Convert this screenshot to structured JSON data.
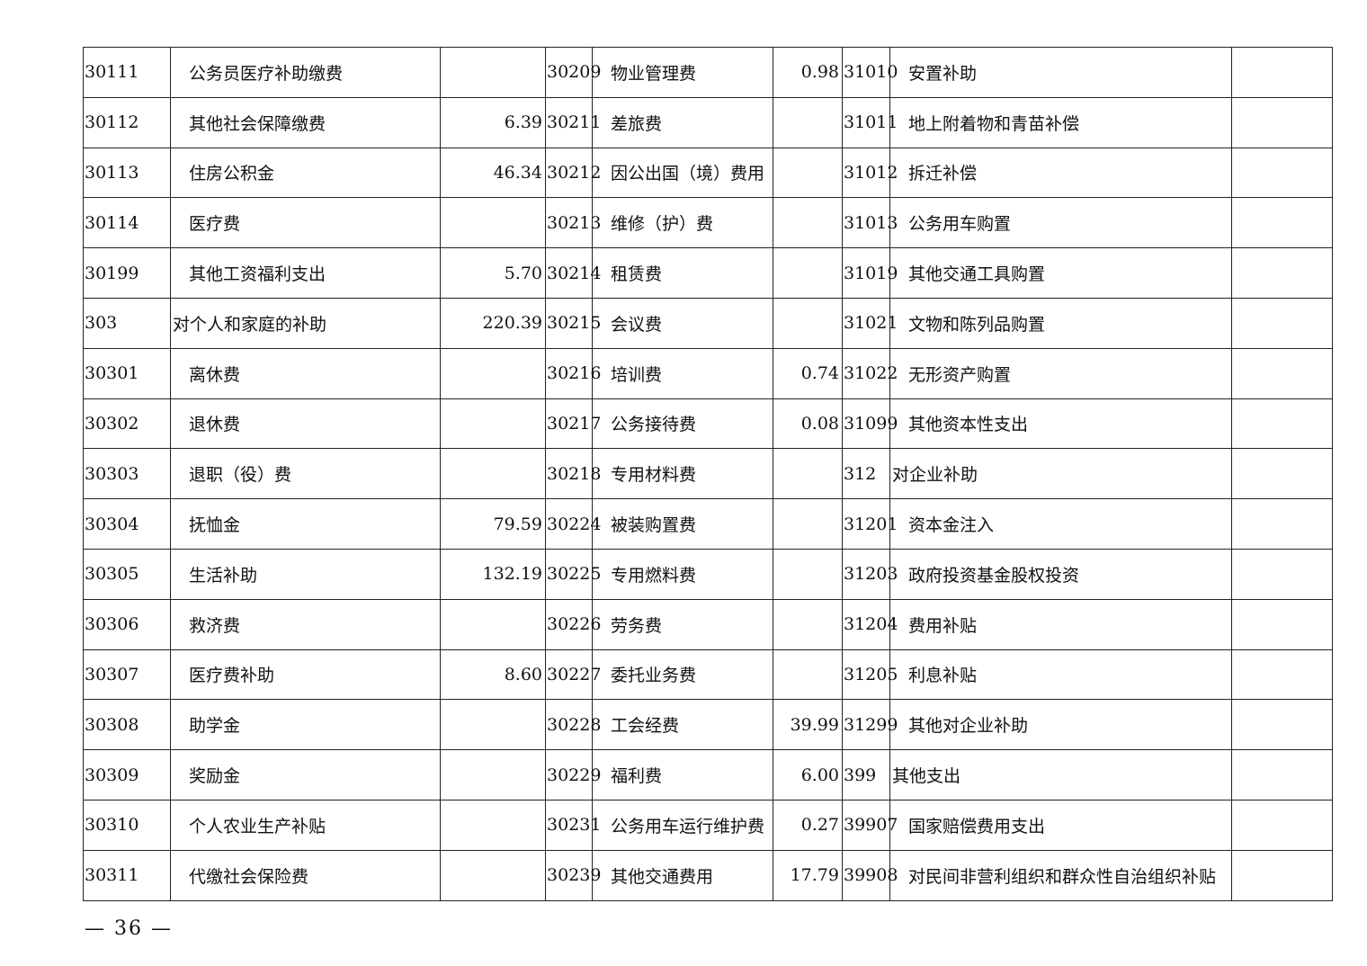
{
  "table": {
    "rows": [
      [
        "30111",
        "公务员医疗补助缴费",
        "",
        "30209",
        "物业管理费",
        "0.98",
        "31010",
        "安置补助",
        ""
      ],
      [
        "30112",
        "其他社会保障缴费",
        "6.39",
        "30211",
        "差旅费",
        "",
        "31011",
        "地上附着物和青苗补偿",
        ""
      ],
      [
        "30113",
        "住房公积金",
        "46.34",
        "30212",
        "因公出国（境）费用",
        "",
        "31012",
        "拆迁补偿",
        ""
      ],
      [
        "30114",
        "医疗费",
        "",
        "30213",
        "维修（护）费",
        "",
        "31013",
        "公务用车购置",
        ""
      ],
      [
        "30199",
        "其他工资福利支出",
        "5.70",
        "30214",
        "租赁费",
        "",
        "31019",
        "其他交通工具购置",
        ""
      ],
      [
        "303",
        "对个人和家庭的补助",
        "220.39",
        "30215",
        "会议费",
        "",
        "31021",
        "文物和陈列品购置",
        ""
      ],
      [
        "30301",
        "离休费",
        "",
        "30216",
        "培训费",
        "0.74",
        "31022",
        "无形资产购置",
        ""
      ],
      [
        "30302",
        "退休费",
        "",
        "30217",
        "公务接待费",
        "0.08",
        "31099",
        "其他资本性支出",
        ""
      ],
      [
        "30303",
        "退职（役）费",
        "",
        "30218",
        "专用材料费",
        "",
        "312",
        "对企业补助",
        ""
      ],
      [
        "30304",
        "抚恤金",
        "79.59",
        "30224",
        "被装购置费",
        "",
        "31201",
        "资本金注入",
        ""
      ],
      [
        "30305",
        "生活补助",
        "132.19",
        "30225",
        "专用燃料费",
        "",
        "31203",
        "政府投资基金股权投资",
        ""
      ],
      [
        "30306",
        "救济费",
        "",
        "30226",
        "劳务费",
        "",
        "31204",
        "费用补贴",
        ""
      ],
      [
        "30307",
        "医疗费补助",
        "8.60",
        "30227",
        "委托业务费",
        "",
        "31205",
        "利息补贴",
        ""
      ],
      [
        "30308",
        "助学金",
        "",
        "30228",
        "工会经费",
        "39.99",
        "31299",
        "其他对企业补助",
        ""
      ],
      [
        "30309",
        "奖励金",
        "",
        "30229",
        "福利费",
        "6.00",
        "399",
        "其他支出",
        ""
      ],
      [
        "30310",
        "个人农业生产补贴",
        "",
        "30231",
        "公务用车运行维护费",
        "0.27",
        "39907",
        "国家赔偿费用支出",
        ""
      ],
      [
        "30311",
        "代缴社会保险费",
        "",
        "30239",
        "其他交通费用",
        "17.79",
        "39908",
        "对民间非营利组织和群众性自治组织补贴",
        ""
      ]
    ]
  },
  "footer": {
    "page_number": "— 36 —"
  }
}
